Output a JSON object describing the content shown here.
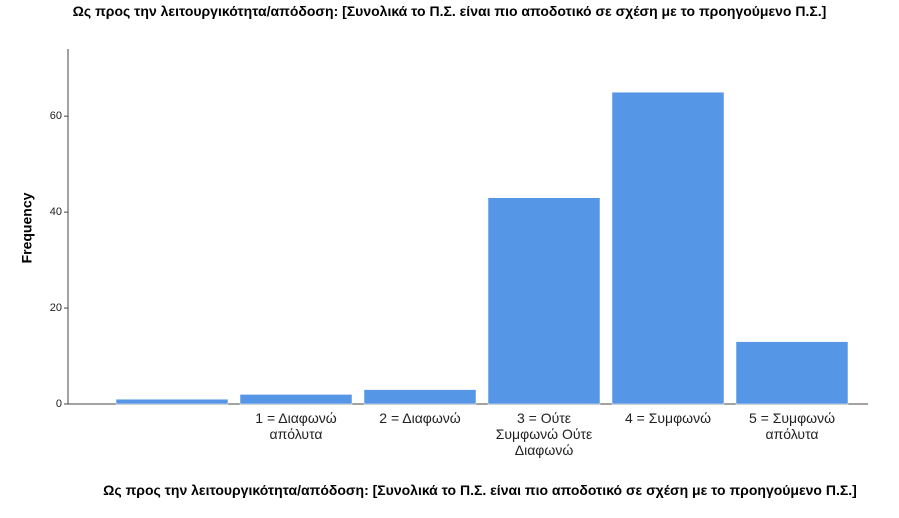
{
  "chart_data": {
    "type": "bar",
    "title": "Ως προς την λειτουργικότητα/απόδοση: [Συνολικά το Π.Σ. είναι πιο αποδοτικό σε σχέση με το προηγούμενο Π.Σ.]",
    "x_label": "Ως προς την λειτουργικότητα/απόδοση: [Συνολικά το Π.Σ. είναι πιο αποδοτικό σε σχέση με το προηγούμενο Π.Σ.]",
    "y_label": "Frequency",
    "categories": [
      null,
      "1 = Διαφωνώ απόλυτα",
      "2 = Διαφωνώ",
      "3 = Ούτε Συμφωνώ Ούτε Διαφωνώ",
      "4 = Συμφωνώ",
      "5 = Συμφωνώ απόλυτα"
    ],
    "values": [
      1,
      2,
      3,
      43,
      65,
      13
    ],
    "color": "#5597e6",
    "ylim": [
      0,
      74
    ],
    "yticks": [
      0,
      20,
      40,
      60
    ],
    "grid": false
  }
}
